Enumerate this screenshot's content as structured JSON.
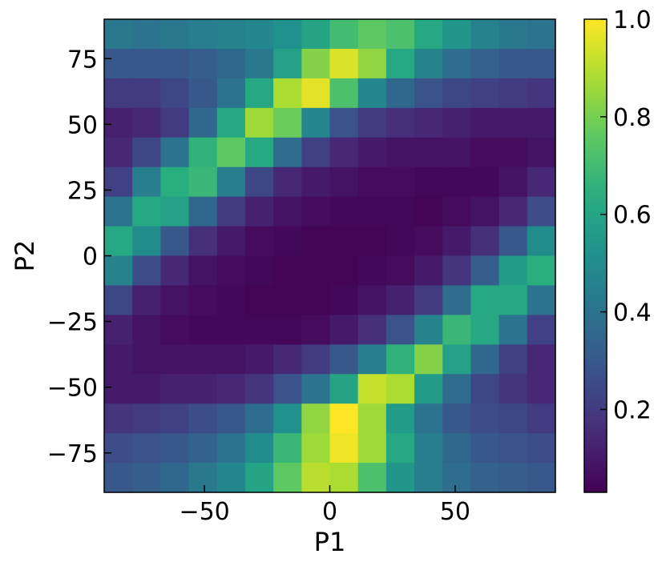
{
  "chart_data": {
    "type": "heatmap",
    "title": "",
    "xlabel": "P1",
    "ylabel": "P2",
    "xlim": [
      -90,
      90
    ],
    "ylim": [
      -90,
      90
    ],
    "x_ticks": [
      -50,
      0,
      50
    ],
    "y_ticks": [
      -75,
      -50,
      -25,
      0,
      25,
      50,
      75
    ],
    "x_tick_labels": [
      "−50",
      "0",
      "50"
    ],
    "y_tick_labels": [
      "−75",
      "−50",
      "−25",
      "0",
      "25",
      "50",
      "75"
    ],
    "colormap": "viridis",
    "colorbar_range": [
      0.03,
      1.0
    ],
    "colorbar_ticks": [
      0.2,
      0.4,
      0.6,
      0.8,
      1.0
    ],
    "colorbar_tick_labels": [
      "0.2",
      "0.4",
      "0.6",
      "0.8",
      "1.0"
    ],
    "grid": false,
    "x_centers": [
      -84.375,
      -73.125,
      -61.875,
      -50.625,
      -39.375,
      -28.125,
      -16.875,
      -5.625,
      5.625,
      16.875,
      28.125,
      39.375,
      50.625,
      61.875,
      73.125,
      84.375
    ],
    "y_centers": [
      84.375,
      73.125,
      61.875,
      50.625,
      39.375,
      28.125,
      16.875,
      5.625,
      -5.625,
      -16.875,
      -28.125,
      -39.375,
      -50.625,
      -61.875,
      -73.125,
      -84.375
    ],
    "values": [
      [
        0.42,
        0.4,
        0.42,
        0.44,
        0.46,
        0.48,
        0.52,
        0.6,
        0.7,
        0.76,
        0.72,
        0.62,
        0.54,
        0.46,
        0.42,
        0.4
      ],
      [
        0.3,
        0.3,
        0.3,
        0.32,
        0.36,
        0.42,
        0.58,
        0.82,
        0.95,
        0.84,
        0.62,
        0.46,
        0.38,
        0.34,
        0.3,
        0.3
      ],
      [
        0.2,
        0.2,
        0.24,
        0.3,
        0.4,
        0.62,
        0.88,
        0.96,
        0.72,
        0.48,
        0.36,
        0.28,
        0.24,
        0.22,
        0.2,
        0.18
      ],
      [
        0.12,
        0.14,
        0.2,
        0.36,
        0.62,
        0.86,
        0.78,
        0.48,
        0.28,
        0.2,
        0.16,
        0.14,
        0.12,
        0.1,
        0.1,
        0.1
      ],
      [
        0.14,
        0.24,
        0.4,
        0.66,
        0.76,
        0.62,
        0.38,
        0.22,
        0.14,
        0.1,
        0.08,
        0.08,
        0.08,
        0.06,
        0.06,
        0.08
      ],
      [
        0.22,
        0.44,
        0.64,
        0.68,
        0.44,
        0.24,
        0.14,
        0.1,
        0.08,
        0.06,
        0.06,
        0.05,
        0.05,
        0.05,
        0.08,
        0.14
      ],
      [
        0.4,
        0.62,
        0.58,
        0.36,
        0.2,
        0.12,
        0.08,
        0.06,
        0.05,
        0.05,
        0.05,
        0.04,
        0.06,
        0.08,
        0.14,
        0.26
      ],
      [
        0.62,
        0.5,
        0.3,
        0.16,
        0.1,
        0.06,
        0.05,
        0.04,
        0.04,
        0.04,
        0.05,
        0.06,
        0.1,
        0.16,
        0.3,
        0.5
      ],
      [
        0.46,
        0.26,
        0.14,
        0.08,
        0.06,
        0.05,
        0.04,
        0.04,
        0.04,
        0.05,
        0.06,
        0.1,
        0.18,
        0.32,
        0.56,
        0.64
      ],
      [
        0.24,
        0.12,
        0.08,
        0.06,
        0.05,
        0.04,
        0.04,
        0.04,
        0.05,
        0.08,
        0.12,
        0.2,
        0.38,
        0.62,
        0.62,
        0.4
      ],
      [
        0.12,
        0.08,
        0.06,
        0.05,
        0.05,
        0.05,
        0.05,
        0.06,
        0.1,
        0.16,
        0.28,
        0.46,
        0.68,
        0.62,
        0.4,
        0.22
      ],
      [
        0.1,
        0.08,
        0.08,
        0.08,
        0.08,
        0.1,
        0.14,
        0.2,
        0.3,
        0.44,
        0.66,
        0.82,
        0.58,
        0.36,
        0.22,
        0.14
      ],
      [
        0.1,
        0.1,
        0.12,
        0.12,
        0.14,
        0.18,
        0.28,
        0.4,
        0.6,
        0.92,
        0.88,
        0.56,
        0.38,
        0.24,
        0.18,
        0.14
      ],
      [
        0.18,
        0.2,
        0.22,
        0.26,
        0.3,
        0.38,
        0.52,
        0.84,
        1.0,
        0.86,
        0.56,
        0.4,
        0.3,
        0.26,
        0.24,
        0.2
      ],
      [
        0.26,
        0.28,
        0.3,
        0.34,
        0.4,
        0.5,
        0.68,
        0.86,
        0.98,
        0.86,
        0.62,
        0.44,
        0.36,
        0.3,
        0.28,
        0.26
      ],
      [
        0.3,
        0.32,
        0.36,
        0.42,
        0.48,
        0.6,
        0.76,
        0.9,
        0.88,
        0.72,
        0.54,
        0.44,
        0.38,
        0.34,
        0.32,
        0.3
      ]
    ]
  }
}
